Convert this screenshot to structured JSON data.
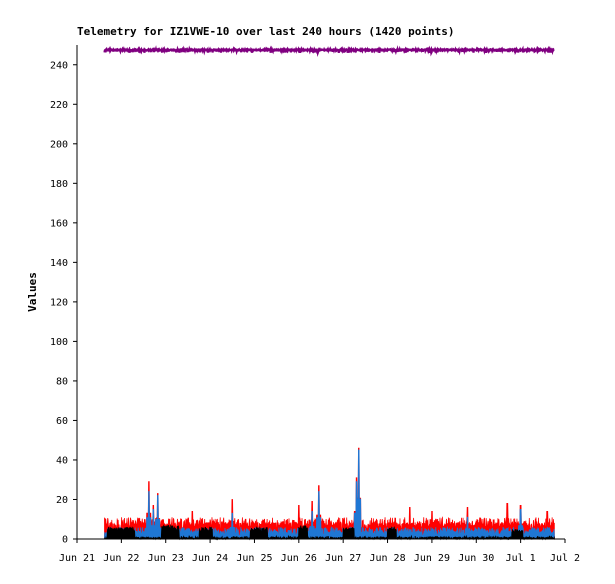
{
  "chart_data": {
    "type": "line",
    "title": "Telemetry for IZ1VWE-10 over last 240 hours (1420 points)",
    "xlabel": "",
    "ylabel": "Values",
    "ylim": [
      0,
      250
    ],
    "y_ticks": [
      0,
      20,
      40,
      60,
      80,
      100,
      120,
      140,
      160,
      180,
      200,
      220,
      240
    ],
    "x_range": [
      "Jun 21",
      "Jul 2"
    ],
    "x_ticks": [
      "Jun 21",
      "Jun 22",
      "Jun 23",
      "Jun 24",
      "Jun 25",
      "Jun 26",
      "Jun 27",
      "Jun 28",
      "Jun 29",
      "Jun 30",
      "Jul 1",
      "Jul 2"
    ],
    "x_start_day": 0.62,
    "x_end_day": 10.76,
    "grid": false,
    "legend": "none",
    "series": [
      {
        "color": "#800080",
        "baseline": 247.5,
        "low": 246,
        "high": 248.5,
        "spikes": []
      },
      {
        "color": "#ff0000",
        "baseline": 7.5,
        "low": 3,
        "high": 11,
        "spikes": [
          [
            1.62,
            29
          ],
          [
            1.72,
            17
          ],
          [
            1.82,
            23
          ],
          [
            2.6,
            14
          ],
          [
            3.5,
            20
          ],
          [
            3.8,
            10
          ],
          [
            5.0,
            17
          ],
          [
            5.3,
            19
          ],
          [
            5.45,
            27
          ],
          [
            6.3,
            31
          ],
          [
            6.35,
            46
          ],
          [
            7.5,
            16
          ],
          [
            8.0,
            14
          ],
          [
            8.8,
            16
          ],
          [
            9.7,
            18
          ],
          [
            10.0,
            17
          ],
          [
            10.6,
            14
          ]
        ]
      },
      {
        "color": "#1f77d4",
        "baseline": 3.5,
        "low": 1,
        "high": 6,
        "spikes": [
          [
            1.62,
            24
          ],
          [
            1.72,
            15
          ],
          [
            1.82,
            22
          ],
          [
            3.5,
            13
          ],
          [
            5.3,
            14
          ],
          [
            5.45,
            24
          ],
          [
            6.35,
            45
          ],
          [
            6.3,
            29
          ],
          [
            8.8,
            11
          ],
          [
            10.0,
            15
          ]
        ]
      },
      {
        "color": "#000000",
        "baseline": 0.5,
        "low": 0,
        "high": 1,
        "blocks": [
          [
            0.68,
            1.3,
            6
          ],
          [
            1.9,
            2.3,
            7
          ],
          [
            2.75,
            3.05,
            6
          ],
          [
            3.9,
            4.3,
            6
          ],
          [
            5.0,
            5.2,
            7
          ],
          [
            6.0,
            6.25,
            6
          ],
          [
            7.0,
            7.2,
            6
          ],
          [
            9.8,
            10.05,
            5
          ]
        ]
      }
    ]
  }
}
